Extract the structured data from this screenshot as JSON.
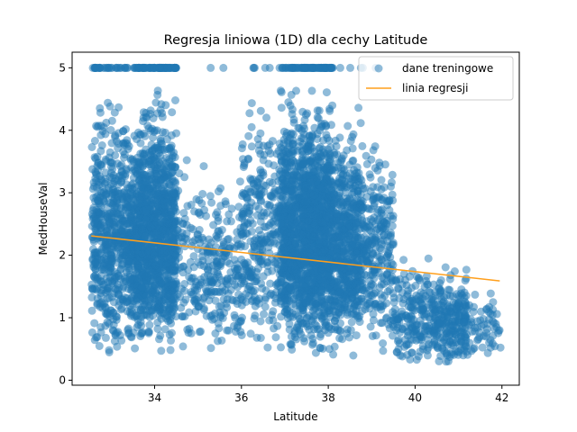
{
  "chart_data": {
    "type": "scatter",
    "title": "Regresja liniowa (1D) dla cechy Latitude",
    "xlabel": "Latitude",
    "ylabel": "MedHouseVal",
    "xlim": [
      32.1,
      42.4
    ],
    "ylim": [
      -0.08,
      5.25
    ],
    "x_ticks": [
      "34",
      "36",
      "38",
      "40",
      "42"
    ],
    "y_ticks": [
      "0",
      "1",
      "2",
      "3",
      "4",
      "5"
    ],
    "grid": false,
    "legend_position": "top-right",
    "series": [
      {
        "name": "dane treningowe",
        "kind": "scatter",
        "color": "#1f77b4",
        "alpha": 0.5,
        "clusters": [
          {
            "x_range": [
              32.55,
              33.3
            ],
            "y_range": [
              0.25,
              5.0
            ],
            "count": 500,
            "capped_count": 30
          },
          {
            "x_range": [
              33.3,
              33.6
            ],
            "y_range": [
              0.3,
              4.5
            ],
            "count": 250,
            "capped_count": 10
          },
          {
            "x_range": [
              33.6,
              34.5
            ],
            "y_range": [
              0.3,
              5.0
            ],
            "count": 1100,
            "capped_count": 80
          },
          {
            "x_range": [
              34.5,
              35.2
            ],
            "y_range": [
              0.3,
              3.8
            ],
            "count": 120,
            "capped_count": 0
          },
          {
            "x_range": [
              35.2,
              36.0
            ],
            "y_range": [
              0.3,
              3.6
            ],
            "count": 180,
            "capped_count": 2
          },
          {
            "x_range": [
              36.0,
              36.9
            ],
            "y_range": [
              0.2,
              5.0
            ],
            "count": 300,
            "capped_count": 6
          },
          {
            "x_range": [
              36.9,
              37.4
            ],
            "y_range": [
              0.3,
              5.0
            ],
            "count": 600,
            "capped_count": 25
          },
          {
            "x_range": [
              37.4,
              38.1
            ],
            "y_range": [
              0.3,
              5.0
            ],
            "count": 1000,
            "capped_count": 60
          },
          {
            "x_range": [
              38.1,
              38.8
            ],
            "y_range": [
              0.3,
              4.5
            ],
            "count": 600,
            "capped_count": 5
          },
          {
            "x_range": [
              38.8,
              39.5
            ],
            "y_range": [
              0.3,
              4.4
            ],
            "count": 250,
            "capped_count": 1
          },
          {
            "x_range": [
              39.5,
              40.4
            ],
            "y_range": [
              0.15,
              2.2
            ],
            "count": 180,
            "capped_count": 0
          },
          {
            "x_range": [
              40.4,
              41.2
            ],
            "y_range": [
              0.15,
              2.0
            ],
            "count": 250,
            "capped_count": 0
          },
          {
            "x_range": [
              41.2,
              42.0
            ],
            "y_range": [
              0.3,
              1.6
            ],
            "count": 60,
            "capped_count": 0
          }
        ]
      },
      {
        "name": "linia regresji",
        "kind": "line",
        "color": "#ff9f1c",
        "x": [
          32.54,
          41.95
        ],
        "y": [
          2.31,
          1.59
        ]
      }
    ]
  }
}
